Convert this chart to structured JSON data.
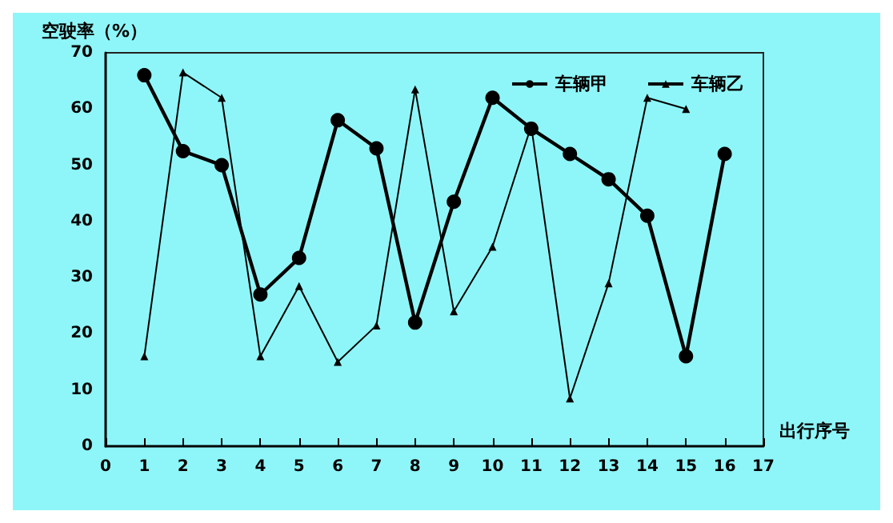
{
  "chart_data": {
    "type": "line",
    "xlabel": "出行序号",
    "ylabel": "空驶率（%）",
    "x": [
      1,
      2,
      3,
      4,
      5,
      6,
      7,
      8,
      9,
      10,
      11,
      12,
      13,
      14,
      15,
      16
    ],
    "series": [
      {
        "name": "车辆甲",
        "color": "#000000",
        "marker": "circle",
        "values": [
          66,
          52.5,
          50,
          27,
          33.5,
          58,
          53,
          22,
          43.5,
          62,
          56.5,
          52,
          47.5,
          41,
          16,
          52
        ]
      },
      {
        "name": "车辆乙",
        "color": "#000000",
        "marker": "triangle",
        "values": [
          16,
          66.5,
          62,
          16,
          28.5,
          15,
          21.5,
          63.5,
          24,
          35.5,
          57,
          8.5,
          29,
          62,
          60,
          null
        ]
      }
    ],
    "xlim": [
      0,
      17
    ],
    "xticks": [
      0,
      1,
      2,
      3,
      4,
      5,
      6,
      7,
      8,
      9,
      10,
      11,
      12,
      13,
      14,
      15,
      16,
      17
    ],
    "ylim": [
      0,
      70
    ],
    "yticks": [
      0,
      10,
      20,
      30,
      40,
      50,
      60,
      70
    ],
    "grid": false,
    "legend": "top right",
    "line_style": "solid"
  }
}
